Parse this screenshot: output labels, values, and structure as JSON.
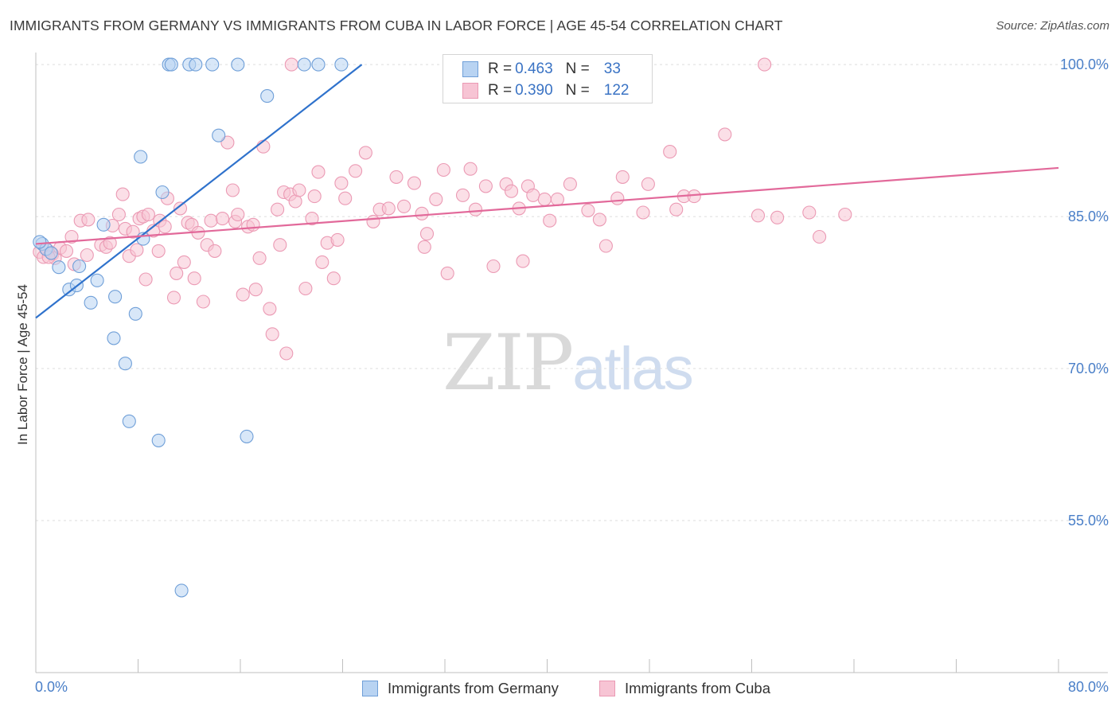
{
  "header": {
    "title": "IMMIGRANTS FROM GERMANY VS IMMIGRANTS FROM CUBA IN LABOR FORCE | AGE 45-54 CORRELATION CHART",
    "source": "Source: ZipAtlas.com"
  },
  "legend": {
    "germany": {
      "r_label": "R =",
      "r_value": "0.463",
      "n_label": "N =",
      "n_value": "33"
    },
    "cuba": {
      "r_label": "R =",
      "r_value": "0.390",
      "n_label": "N =",
      "n_value": "122"
    }
  },
  "bottom_legend": {
    "germany": "Immigrants from Germany",
    "cuba": "Immigrants from Cuba"
  },
  "watermark": {
    "zip": "ZIP",
    "atlas": "atlas"
  },
  "colors": {
    "germany_fill": "#b8d3f2",
    "germany_stroke": "#6f9fd8",
    "germany_line": "#2f72cc",
    "cuba_fill": "#f7c4d4",
    "cuba_stroke": "#eb9ab4",
    "cuba_line": "#e2699a",
    "tick_text": "#4a7fc8"
  },
  "chart_data": {
    "type": "scatter",
    "title": "IMMIGRANTS FROM GERMANY VS IMMIGRANTS FROM CUBA IN LABOR FORCE | AGE 45-54 CORRELATION CHART",
    "xlabel": "",
    "ylabel": "In Labor Force | Age 45-54",
    "xlim": [
      0,
      80
    ],
    "ylim": [
      40,
      101.5
    ],
    "x_tick_labels": [
      "0.0%",
      "80.0%"
    ],
    "y_ticks": [
      100,
      85,
      70,
      55
    ],
    "y_tick_labels": [
      "100.0%",
      "85.0%",
      "70.0%",
      "55.0%"
    ],
    "grid": true,
    "series": [
      {
        "name": "Immigrants from Germany",
        "R": 0.463,
        "N": 33,
        "points": [
          [
            0.5,
            82.3
          ],
          [
            0.8,
            81.8
          ],
          [
            1.2,
            81.4
          ],
          [
            1.8,
            80.0
          ],
          [
            2.6,
            77.8
          ],
          [
            3.4,
            80.1
          ],
          [
            3.2,
            78.2
          ],
          [
            4.3,
            76.5
          ],
          [
            4.8,
            78.7
          ],
          [
            5.3,
            84.2
          ],
          [
            6.2,
            77.1
          ],
          [
            7.3,
            64.8
          ],
          [
            7.0,
            70.5
          ],
          [
            6.1,
            73.0
          ],
          [
            7.8,
            75.4
          ],
          [
            8.4,
            82.8
          ],
          [
            8.2,
            90.9
          ],
          [
            9.6,
            62.9
          ],
          [
            9.9,
            87.4
          ],
          [
            11.4,
            48.1
          ],
          [
            10.4,
            100.0
          ],
          [
            10.6,
            100.0
          ],
          [
            12.0,
            100.0
          ],
          [
            12.5,
            100.0
          ],
          [
            13.8,
            100.0
          ],
          [
            15.8,
            100.0
          ],
          [
            14.3,
            93.0
          ],
          [
            16.5,
            63.3
          ],
          [
            18.1,
            96.9
          ],
          [
            21.0,
            100.0
          ],
          [
            22.1,
            100.0
          ],
          [
            23.9,
            100.0
          ],
          [
            0.3,
            82.5
          ]
        ],
        "trend_line": [
          [
            0,
            75.0
          ],
          [
            25.5,
            100.0
          ]
        ]
      },
      {
        "name": "Immigrants from Cuba",
        "R": 0.39,
        "N": 122,
        "points": [
          [
            0.3,
            81.5
          ],
          [
            0.6,
            81.0
          ],
          [
            0.9,
            81.7
          ],
          [
            1.3,
            81.3
          ],
          [
            1.5,
            80.9
          ],
          [
            1.9,
            81.9
          ],
          [
            2.4,
            81.6
          ],
          [
            2.8,
            83.0
          ],
          [
            3.0,
            80.3
          ],
          [
            3.5,
            84.6
          ],
          [
            4.1,
            84.7
          ],
          [
            4.0,
            81.2
          ],
          [
            5.1,
            82.2
          ],
          [
            5.5,
            82.0
          ],
          [
            5.8,
            82.4
          ],
          [
            6.0,
            84.1
          ],
          [
            6.5,
            85.2
          ],
          [
            6.8,
            87.2
          ],
          [
            7.0,
            83.8
          ],
          [
            7.3,
            81.1
          ],
          [
            7.6,
            83.5
          ],
          [
            7.9,
            81.7
          ],
          [
            8.1,
            84.8
          ],
          [
            8.4,
            85.0
          ],
          [
            8.6,
            78.8
          ],
          [
            8.8,
            85.2
          ],
          [
            9.2,
            83.6
          ],
          [
            9.6,
            81.6
          ],
          [
            9.7,
            84.6
          ],
          [
            10.1,
            84.0
          ],
          [
            10.3,
            86.8
          ],
          [
            10.8,
            77.0
          ],
          [
            11.0,
            79.4
          ],
          [
            11.3,
            85.8
          ],
          [
            11.6,
            80.5
          ],
          [
            11.9,
            84.4
          ],
          [
            12.2,
            84.2
          ],
          [
            12.4,
            78.9
          ],
          [
            12.7,
            83.4
          ],
          [
            13.1,
            76.6
          ],
          [
            13.4,
            82.2
          ],
          [
            13.7,
            84.6
          ],
          [
            14.0,
            81.6
          ],
          [
            14.6,
            84.8
          ],
          [
            15.0,
            92.3
          ],
          [
            15.4,
            87.6
          ],
          [
            15.6,
            84.5
          ],
          [
            15.8,
            85.2
          ],
          [
            16.2,
            77.3
          ],
          [
            16.6,
            84.0
          ],
          [
            17.0,
            84.2
          ],
          [
            17.2,
            77.8
          ],
          [
            17.5,
            80.9
          ],
          [
            17.8,
            91.9
          ],
          [
            18.3,
            75.9
          ],
          [
            18.5,
            73.4
          ],
          [
            18.9,
            85.7
          ],
          [
            19.1,
            82.2
          ],
          [
            19.4,
            87.4
          ],
          [
            19.9,
            87.2
          ],
          [
            19.6,
            71.5
          ],
          [
            20.3,
            86.5
          ],
          [
            20.6,
            87.6
          ],
          [
            21.1,
            77.9
          ],
          [
            21.6,
            84.8
          ],
          [
            21.8,
            87.0
          ],
          [
            22.1,
            89.4
          ],
          [
            22.4,
            80.5
          ],
          [
            22.8,
            82.4
          ],
          [
            23.3,
            78.9
          ],
          [
            23.6,
            82.7
          ],
          [
            23.9,
            88.3
          ],
          [
            24.2,
            86.8
          ],
          [
            25.0,
            89.5
          ],
          [
            25.8,
            91.3
          ],
          [
            26.4,
            84.5
          ],
          [
            26.9,
            85.7
          ],
          [
            27.6,
            85.8
          ],
          [
            28.2,
            88.9
          ],
          [
            28.8,
            86.0
          ],
          [
            29.6,
            88.3
          ],
          [
            30.2,
            85.3
          ],
          [
            30.6,
            83.3
          ],
          [
            30.4,
            82.0
          ],
          [
            31.3,
            86.7
          ],
          [
            31.9,
            89.6
          ],
          [
            32.2,
            79.4
          ],
          [
            33.4,
            87.1
          ],
          [
            34.0,
            89.7
          ],
          [
            34.4,
            85.7
          ],
          [
            35.2,
            88.0
          ],
          [
            35.8,
            80.1
          ],
          [
            36.8,
            88.2
          ],
          [
            37.2,
            87.5
          ],
          [
            37.8,
            85.8
          ],
          [
            38.1,
            80.6
          ],
          [
            38.5,
            88.0
          ],
          [
            38.9,
            87.1
          ],
          [
            39.8,
            86.7
          ],
          [
            40.2,
            84.6
          ],
          [
            40.8,
            86.7
          ],
          [
            41.8,
            88.2
          ],
          [
            43.2,
            85.6
          ],
          [
            44.1,
            84.7
          ],
          [
            44.6,
            82.1
          ],
          [
            45.5,
            86.8
          ],
          [
            45.9,
            88.9
          ],
          [
            47.5,
            85.4
          ],
          [
            47.9,
            88.2
          ],
          [
            49.6,
            91.4
          ],
          [
            50.1,
            85.7
          ],
          [
            50.7,
            87.0
          ],
          [
            51.5,
            87.0
          ],
          [
            53.9,
            93.1
          ],
          [
            56.5,
            85.1
          ],
          [
            58.0,
            84.9
          ],
          [
            57.0,
            100.0
          ],
          [
            60.5,
            85.4
          ],
          [
            61.3,
            83.0
          ],
          [
            63.3,
            85.2
          ],
          [
            20.0,
            100.0
          ],
          [
            1.0,
            81.0
          ]
        ],
        "trend_line": [
          [
            0,
            82.3
          ],
          [
            80,
            89.8
          ]
        ]
      }
    ]
  }
}
